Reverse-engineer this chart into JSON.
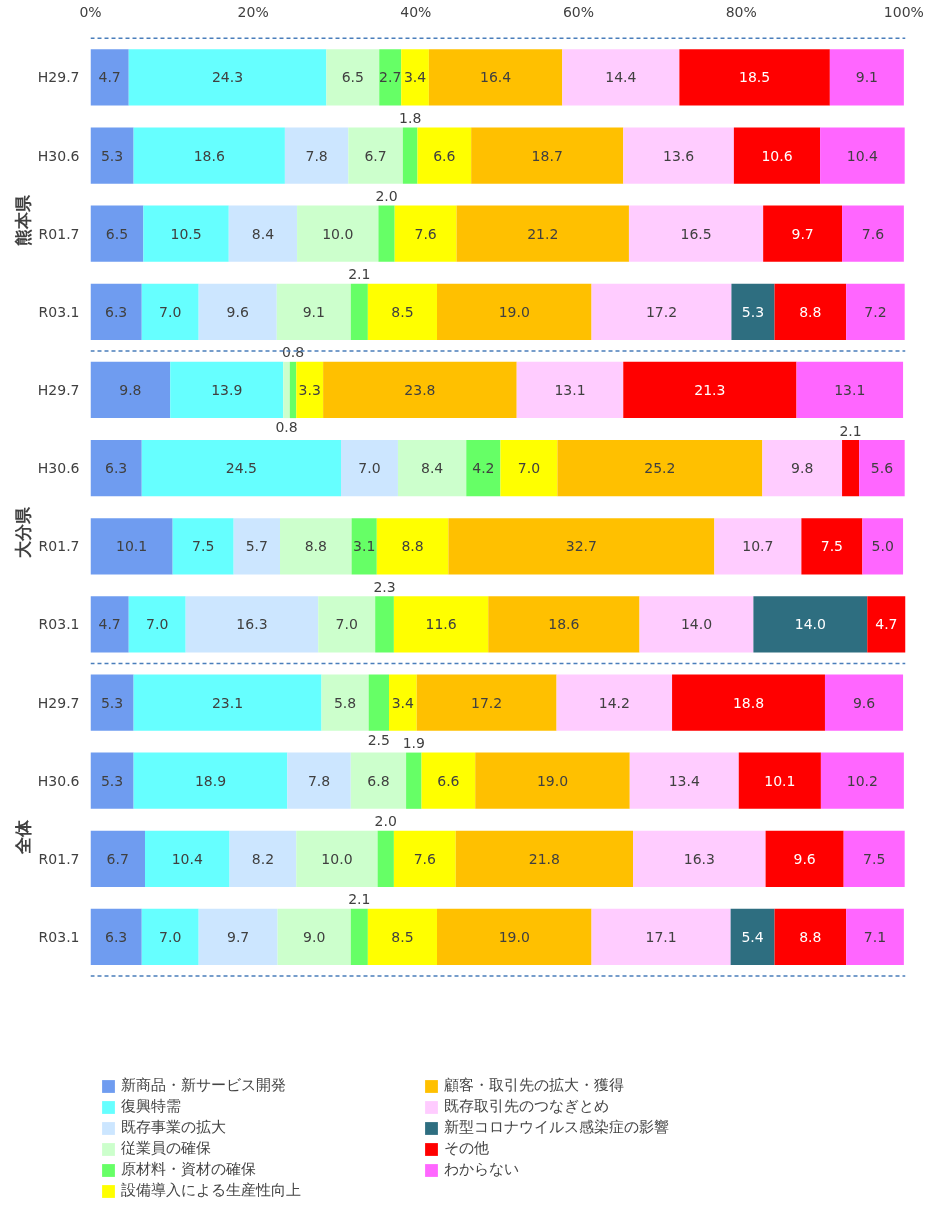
{
  "chart_data": {
    "type": "bar",
    "orientation": "horizontal",
    "stacked": true,
    "legend": "bottom",
    "grid": false,
    "categories": [
      "H29.7",
      "H30.6",
      "R01.7",
      "R03.1",
      "H29.7",
      "H30.6",
      "R01.7",
      "R03.1",
      "H29.7",
      "H30.6",
      "R01.7",
      "R03.1"
    ],
    "annotations": [
      "熊本県",
      "大分県",
      "全体"
    ],
    "xlim": [
      0,
      100.2
    ],
    "xticks": [
      {
        "value": 0,
        "label": "0%"
      },
      {
        "value": 20,
        "label": "20%"
      },
      {
        "value": 40,
        "label": "40%"
      },
      {
        "value": 60,
        "label": "60%"
      },
      {
        "value": 80,
        "label": "80%"
      },
      {
        "value": 100,
        "label": "100%"
      }
    ],
    "series": [
      {
        "name": "新商品・新サービス開発",
        "color": "#6f9cf0",
        "values": [
          4.7,
          5.3,
          6.5,
          6.3,
          9.8,
          6.3,
          10.1,
          4.7,
          5.3,
          5.3,
          6.7,
          6.3
        ],
        "value_labels": [
          "4.7",
          "5.3",
          "6.5",
          "6.3",
          "9.8",
          "6.3",
          "10.1",
          "4.7",
          "5.3",
          "5.3",
          "6.7",
          "6.3"
        ]
      },
      {
        "name": "復興特需",
        "color": "#66ffff",
        "values": [
          24.3,
          18.6,
          10.5,
          7.0,
          13.9,
          24.5,
          7.5,
          7.0,
          23.1,
          18.9,
          10.4,
          7.0
        ],
        "value_labels": [
          "24.3",
          "18.6",
          "10.5",
          "7.0",
          "13.9",
          "24.5",
          "7.5",
          "7.0",
          "23.1",
          "18.9",
          "10.4",
          "7.0"
        ]
      },
      {
        "name": "既存事業の拡大",
        "color": "#cce6ff",
        "values": [
          null,
          7.8,
          8.4,
          9.6,
          null,
          7.0,
          5.7,
          16.3,
          null,
          7.8,
          8.2,
          9.7
        ],
        "value_labels": [
          null,
          "7.8",
          "8.4",
          "9.6",
          null,
          "7.0",
          "5.7",
          "16.3",
          null,
          "7.8",
          "8.2",
          "9.7"
        ]
      },
      {
        "name": "従業員の確保",
        "color": "#ccffcc",
        "values": [
          6.5,
          6.7,
          10.0,
          9.1,
          0.8,
          8.4,
          8.8,
          7.0,
          5.8,
          6.8,
          10.0,
          9.0
        ],
        "value_labels": [
          "6.5",
          "6.7",
          "10.0",
          "9.1",
          "0.8",
          "8.4",
          "8.8",
          "7.0",
          "5.8",
          "6.8",
          "10.0",
          "9.0"
        ]
      },
      {
        "name": "原材料・資材の確保",
        "color": "#66ff66",
        "values": [
          2.7,
          1.8,
          2.0,
          2.1,
          0.8,
          4.2,
          3.1,
          2.3,
          2.5,
          1.9,
          2.0,
          2.1
        ],
        "value_labels": [
          "2.7",
          "1.8",
          "2.0",
          "2.1",
          "0.8",
          "4.2",
          "3.1",
          "2.3",
          "2.5",
          "1.9",
          "2.0",
          "2.1"
        ]
      },
      {
        "name": "設備導入による生産性向上",
        "color": "#ffff00",
        "values": [
          3.4,
          6.6,
          7.6,
          8.5,
          3.3,
          7.0,
          8.8,
          11.6,
          3.4,
          6.6,
          7.6,
          8.5
        ],
        "value_labels": [
          "3.4",
          "6.6",
          "7.6",
          "8.5",
          "3.3",
          "7.0",
          "8.8",
          "11.6",
          "3.4",
          "6.6",
          "7.6",
          "8.5"
        ]
      },
      {
        "name": "顧客・取引先の拡大・獲得",
        "color": "#ffc000",
        "values": [
          16.4,
          18.7,
          21.2,
          19.0,
          23.8,
          25.2,
          32.7,
          18.6,
          17.2,
          19.0,
          21.8,
          19.0
        ],
        "value_labels": [
          "16.4",
          "18.7",
          "21.2",
          "19.0",
          "23.8",
          "25.2",
          "32.7",
          "18.6",
          "17.2",
          "19.0",
          "21.8",
          "19.0"
        ]
      },
      {
        "name": "既存取引先のつなぎとめ",
        "color": "#ffccff",
        "values": [
          14.4,
          13.6,
          16.5,
          17.2,
          13.1,
          9.8,
          10.7,
          14.0,
          14.2,
          13.4,
          16.3,
          17.1
        ],
        "value_labels": [
          "14.4",
          "13.6",
          "16.5",
          "17.2",
          "13.1",
          "9.8",
          "10.7",
          "14.0",
          "14.2",
          "13.4",
          "16.3",
          "17.1"
        ]
      },
      {
        "name": "新型コロナウイルス感染症の影響",
        "color": "#2e6e80",
        "values": [
          null,
          null,
          null,
          5.3,
          null,
          null,
          null,
          14.0,
          null,
          null,
          null,
          5.4
        ],
        "value_labels": [
          null,
          null,
          null,
          "5.3",
          null,
          null,
          null,
          "14.0",
          null,
          null,
          null,
          "5.4"
        ]
      },
      {
        "name": "その他",
        "color": "#ff0000",
        "values": [
          18.5,
          10.6,
          9.7,
          8.8,
          21.3,
          2.1,
          7.5,
          4.7,
          18.8,
          10.1,
          9.6,
          8.8
        ],
        "value_labels": [
          "18.5",
          "10.6",
          "9.7",
          "8.8",
          "21.3",
          "2.1",
          "7.5",
          "4.7",
          "18.8",
          "10.1",
          "9.6",
          "8.8"
        ]
      },
      {
        "name": "わからない",
        "color": "#ff66ff",
        "values": [
          9.1,
          10.4,
          7.6,
          7.2,
          13.1,
          5.6,
          5.0,
          null,
          9.6,
          10.2,
          7.5,
          7.1
        ],
        "value_labels": [
          "9.1",
          "10.4",
          "7.6",
          "7.2",
          "13.1",
          "5.6",
          "5.0",
          null,
          "9.6",
          "10.2",
          "7.5",
          "7.1"
        ]
      }
    ]
  }
}
